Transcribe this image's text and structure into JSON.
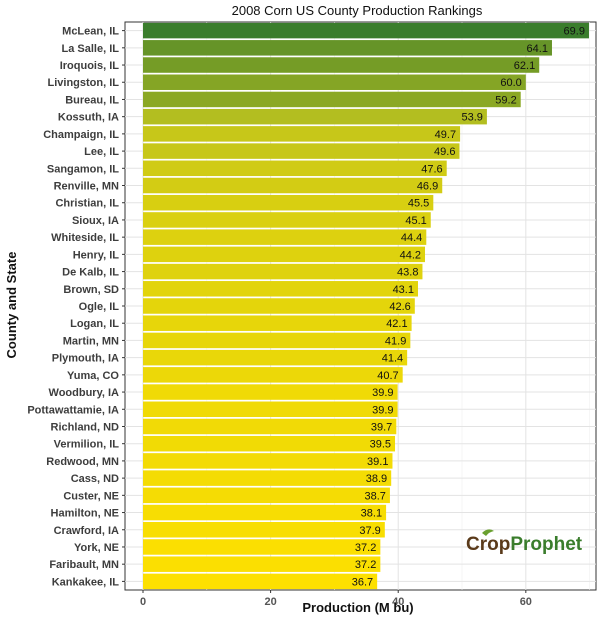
{
  "chart_data": {
    "type": "bar",
    "orientation": "horizontal",
    "title": "2008 Corn US County Production Rankings",
    "xlabel": "Production (M bu)",
    "ylabel": "County and State",
    "xlim": [
      0,
      71
    ],
    "xticks": [
      0,
      20,
      40,
      60
    ],
    "grid": true,
    "categories": [
      "McLean, IL",
      "La Salle, IL",
      "Iroquois, IL",
      "Livingston, IL",
      "Bureau, IL",
      "Kossuth, IA",
      "Champaign, IL",
      "Lee, IL",
      "Sangamon, IL",
      "Renville, MN",
      "Christian, IL",
      "Sioux, IA",
      "Whiteside, IL",
      "Henry, IL",
      "De Kalb, IL",
      "Brown, SD",
      "Ogle, IL",
      "Logan, IL",
      "Martin, MN",
      "Plymouth, IA",
      "Yuma, CO",
      "Woodbury, IA",
      "Pottawattamie, IA",
      "Richland, ND",
      "Vermilion, IL",
      "Redwood, MN",
      "Cass, ND",
      "Custer, NE",
      "Hamilton, NE",
      "Crawford, IA",
      "York, NE",
      "Faribault, MN",
      "Kankakee, IL"
    ],
    "values": [
      69.9,
      64.1,
      62.1,
      60.0,
      59.2,
      53.9,
      49.7,
      49.6,
      47.6,
      46.9,
      45.5,
      45.1,
      44.4,
      44.2,
      43.8,
      43.1,
      42.6,
      42.1,
      41.9,
      41.4,
      40.7,
      39.9,
      39.9,
      39.7,
      39.5,
      39.1,
      38.9,
      38.7,
      38.1,
      37.9,
      37.2,
      37.2,
      36.7
    ],
    "value_labels": [
      "69.9",
      "64.1",
      "62.1",
      "60.0",
      "59.2",
      "53.9",
      "49.7",
      "49.6",
      "47.6",
      "46.9",
      "45.5",
      "45.1",
      "44.4",
      "44.2",
      "43.8",
      "43.1",
      "42.6",
      "42.1",
      "41.9",
      "41.4",
      "40.7",
      "39.9",
      "39.9",
      "39.7",
      "39.5",
      "39.1",
      "38.9",
      "38.7",
      "38.1",
      "37.9",
      "37.2",
      "37.2",
      "36.7"
    ],
    "color_scale": {
      "low": "#fde000",
      "mid": "#b8c020",
      "high": "#3a7d2c"
    }
  },
  "logo": {
    "part1": "Crop",
    "part2": "Prophet",
    "color1": "#5a3a1a",
    "color2": "#3a7d2c"
  }
}
